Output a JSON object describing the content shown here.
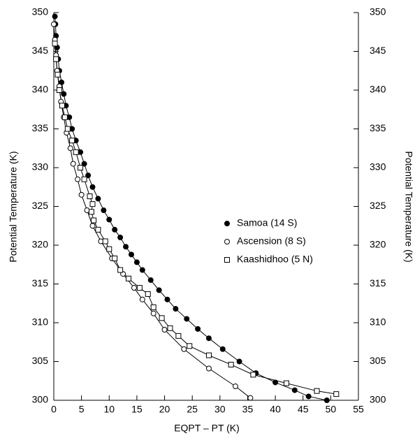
{
  "chart_data": {
    "type": "scatter",
    "xlabel": "EQPT – PT (K)",
    "ylabel": "Potential Temperature (K)",
    "y2label": "Potential Temperature (K)",
    "xlim": [
      0,
      55
    ],
    "xticks": [
      0,
      5,
      10,
      15,
      20,
      25,
      30,
      35,
      40,
      45,
      50,
      55
    ],
    "ylim": [
      300,
      350
    ],
    "yticks": [
      300,
      305,
      310,
      315,
      320,
      325,
      330,
      335,
      340,
      345,
      350
    ],
    "y2lim": [
      300,
      350
    ],
    "y2ticks": [
      300,
      305,
      310,
      315,
      320,
      325,
      330,
      335,
      340,
      345,
      350
    ],
    "legend": "center-right",
    "series": [
      {
        "name": "Samoa (14 S)",
        "color": "#000000",
        "marker": "filled-circle",
        "x": [
          49.3,
          46,
          43.5,
          40,
          36.5,
          33.5,
          30.5,
          28,
          26,
          24,
          22,
          20.5,
          19,
          17.5,
          16,
          15,
          14,
          13,
          12,
          11,
          10,
          9,
          8,
          7,
          6.2,
          5.5,
          4.8,
          4,
          3.3,
          2.8,
          2.2,
          1.8,
          1.4,
          1,
          0.8,
          0.6,
          0.4,
          0.3,
          0.2
        ],
        "values": [
          300,
          300.5,
          301.3,
          302.3,
          303.5,
          305,
          306.6,
          308,
          309.2,
          310.5,
          311.8,
          313,
          314.2,
          315.5,
          316.8,
          317.8,
          318.8,
          319.8,
          321,
          322,
          323.3,
          324.5,
          326,
          327.5,
          329,
          330.5,
          332,
          333.5,
          335,
          336.5,
          338,
          339.5,
          341,
          342.5,
          344,
          345.5,
          347,
          348.5,
          349.5
        ]
      },
      {
        "name": "Ascension (8 S)",
        "color": "#000000",
        "marker": "open-circle",
        "x": [
          35.5,
          32.8,
          28,
          23.5,
          20,
          18,
          16,
          14.5,
          12.5,
          10.5,
          8.5,
          7,
          6,
          5,
          4.3,
          3.5,
          3,
          2.3,
          1.8,
          1.3,
          1,
          0.6,
          0.4,
          0.2,
          0
        ],
        "values": [
          300.3,
          301.8,
          304.1,
          306.6,
          309.1,
          311.2,
          313,
          314.5,
          316.3,
          318.3,
          320.5,
          322.5,
          324.5,
          326.5,
          328.5,
          330.5,
          332.5,
          334.5,
          336.5,
          338.5,
          340.5,
          342.5,
          344.5,
          346.5,
          348.5
        ]
      },
      {
        "name": "Kaashidhoo (5 N)",
        "color": "#000000",
        "marker": "open-square",
        "x": [
          51,
          47.5,
          42,
          36,
          32,
          28,
          24.5,
          22.5,
          21,
          19.5,
          18,
          17,
          15.5,
          13.5,
          12,
          11,
          10,
          9.3,
          8,
          7.2,
          6.8,
          7,
          6.5,
          5.5,
          4.8,
          4,
          3.3,
          2.5,
          2,
          1.5,
          1,
          0.7,
          0.4,
          0.2
        ],
        "values": [
          300.8,
          301.2,
          302.2,
          303.3,
          304.6,
          305.8,
          307,
          308.3,
          309.3,
          310.6,
          312,
          313.7,
          314.5,
          315.7,
          316.8,
          318.3,
          319.5,
          320.5,
          322,
          323.2,
          324.3,
          325.3,
          326.3,
          328.5,
          330,
          332,
          333.5,
          335,
          336.5,
          338,
          340,
          342,
          344,
          346
        ]
      }
    ]
  }
}
